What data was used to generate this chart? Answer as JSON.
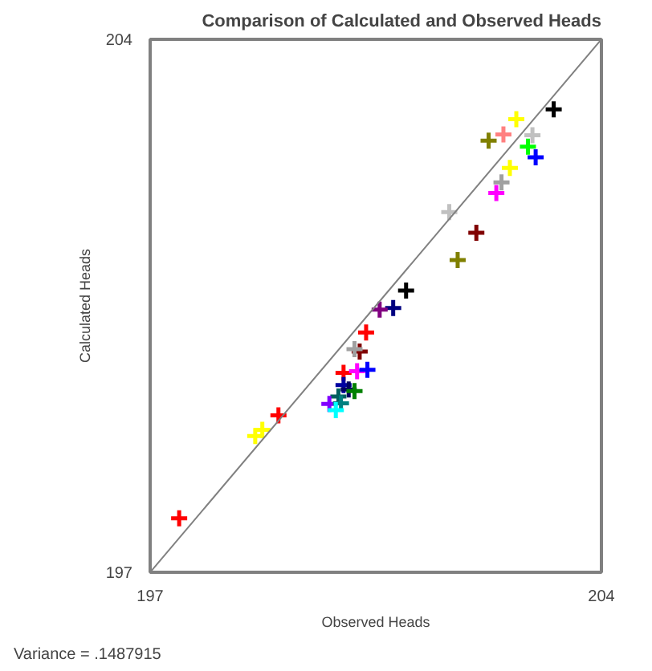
{
  "chart_data": {
    "type": "scatter",
    "title": "Comparison of Calculated and Observed Heads",
    "xlabel": "Observed Heads",
    "ylabel": "Calculated Heads",
    "annotations": [
      "Variance = .1487915"
    ],
    "xlim": [
      197,
      204
    ],
    "ylim": [
      197,
      204
    ],
    "xticks": [
      197,
      204
    ],
    "yticks": [
      197,
      204
    ],
    "series": [
      {
        "marker": "cross",
        "x": [
          203.26,
          202.68,
          202.48,
          202.25,
          202.93,
          202.86,
          202.98,
          202.58,
          202.45,
          202.37,
          201.64,
          202.06,
          201.77,
          200.97,
          200.77,
          200.56,
          200.35,
          200.25,
          200.17,
          200.0,
          200.21,
          200.37,
          200.0,
          200.08,
          200.17,
          199.92,
          199.78,
          199.96,
          199.88,
          198.63,
          198.74,
          198.99,
          197.45
        ],
        "values": [
          203.08,
          202.95,
          202.75,
          202.67,
          202.74,
          202.59,
          202.45,
          202.31,
          202.12,
          201.98,
          201.73,
          201.46,
          201.1,
          200.7,
          200.47,
          200.45,
          200.15,
          199.9,
          199.93,
          199.62,
          199.64,
          199.66,
          199.46,
          199.4,
          199.38,
          199.31,
          199.21,
          199.22,
          199.13,
          198.79,
          198.87,
          199.06,
          197.71
        ],
        "colors": [
          "#000000",
          "#ffff00",
          "#ff8080",
          "#808000",
          "#c0c0c0",
          "#00ff00",
          "#0000ff",
          "#ffff00",
          "#a0a0a0",
          "#ff00ff",
          "#c0c0c0",
          "#800000",
          "#808000",
          "#000000",
          "#000080",
          "#800080",
          "#ff0000",
          "#800000",
          "#a0a0a0",
          "#ff0000",
          "#ff00ff",
          "#0000ff",
          "#0000a0",
          "#000060",
          "#008000",
          "#006060",
          "#8000ff",
          "#008080",
          "#00ffff",
          "#ffff00",
          "#ffff00",
          "#ff0000",
          "#ff0000"
        ]
      },
      {
        "type": "line",
        "x": [
          197,
          204
        ],
        "values": [
          197,
          204
        ],
        "color": "#808080"
      }
    ]
  }
}
